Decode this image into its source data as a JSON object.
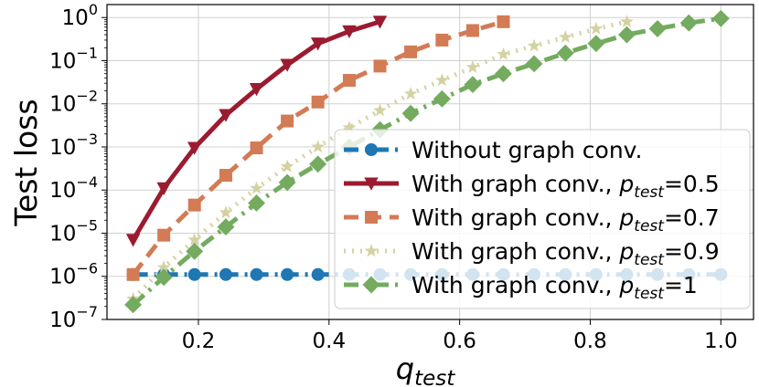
{
  "chart_data": {
    "type": "line",
    "title": "",
    "xlabel": "q",
    "xlabel_sub": "test",
    "ylabel": "Test loss",
    "xlim": [
      0.06,
      1.05
    ],
    "ylim": [
      1e-07,
      2
    ],
    "yscale": "log",
    "grid": true,
    "legend_position": "lower right",
    "x_ticks": [
      {
        "value": 0.2,
        "label": "0.2"
      },
      {
        "value": 0.4,
        "label": "0.4"
      },
      {
        "value": 0.6,
        "label": "0.6"
      },
      {
        "value": 0.8,
        "label": "0.8"
      },
      {
        "value": 1.0,
        "label": "1.0"
      }
    ],
    "y_ticks": [
      {
        "value": 1e-07,
        "base": "10",
        "exp": "−7"
      },
      {
        "value": 1e-06,
        "base": "10",
        "exp": "−6"
      },
      {
        "value": 1e-05,
        "base": "10",
        "exp": "−5"
      },
      {
        "value": 0.0001,
        "base": "10",
        "exp": "−4"
      },
      {
        "value": 0.001,
        "base": "10",
        "exp": "−3"
      },
      {
        "value": 0.01,
        "base": "10",
        "exp": "−2"
      },
      {
        "value": 0.1,
        "base": "10",
        "exp": "−1"
      },
      {
        "value": 1,
        "base": "10",
        "exp": "0"
      }
    ],
    "series": [
      {
        "name": "Without graph conv.",
        "legend_sub": "",
        "legend_suffix": "",
        "color": "#1f77b4",
        "dash": "16,7,3,7",
        "marker": "circle",
        "x": [
          0.1,
          0.147,
          0.194,
          0.242,
          0.289,
          0.336,
          0.383,
          0.431,
          0.478,
          0.525,
          0.573,
          0.62,
          0.667,
          0.714,
          0.762,
          0.809,
          0.856,
          0.903,
          0.951,
          1.0
        ],
        "y": [
          1.1e-06,
          1.1e-06,
          1.1e-06,
          1.1e-06,
          1.1e-06,
          1.1e-06,
          1.1e-06,
          1.1e-06,
          1.1e-06,
          1.1e-06,
          1.1e-06,
          1.1e-06,
          1.1e-06,
          1.1e-06,
          1.1e-06,
          1.1e-06,
          1.1e-06,
          1.1e-06,
          1.1e-06,
          1.1e-06
        ]
      },
      {
        "name": "With graph conv., p",
        "legend_sub": "test",
        "legend_suffix": "=0.5",
        "color": "#9b1b30",
        "dash": "",
        "marker": "triangle-down",
        "x": [
          0.1,
          0.147,
          0.194,
          0.242,
          0.289,
          0.336,
          0.383,
          0.431,
          0.478
        ],
        "y": [
          7e-06,
          0.00011,
          0.00095,
          0.0055,
          0.022,
          0.08,
          0.25,
          0.48,
          0.8
        ]
      },
      {
        "name": "With graph conv., p",
        "legend_sub": "test",
        "legend_suffix": "=0.7",
        "color": "#d27b55",
        "dash": "16,9",
        "marker": "square",
        "x": [
          0.1,
          0.147,
          0.194,
          0.242,
          0.289,
          0.336,
          0.383,
          0.431,
          0.478,
          0.525,
          0.573,
          0.62,
          0.667
        ],
        "y": [
          1.1e-06,
          9e-06,
          4.5e-05,
          0.00022,
          0.00095,
          0.004,
          0.011,
          0.035,
          0.075,
          0.16,
          0.3,
          0.5,
          0.8
        ]
      },
      {
        "name": "With graph conv., p",
        "legend_sub": "test",
        "legend_suffix": "=0.9",
        "color": "#d4d2a2",
        "dash": "2,7",
        "marker": "star",
        "x": [
          0.1,
          0.147,
          0.194,
          0.242,
          0.289,
          0.336,
          0.383,
          0.431,
          0.478,
          0.525,
          0.573,
          0.62,
          0.667,
          0.714,
          0.762,
          0.809,
          0.856
        ],
        "y": [
          3e-07,
          1.6e-06,
          7e-06,
          3e-05,
          0.00011,
          0.00035,
          0.001,
          0.0028,
          0.007,
          0.017,
          0.035,
          0.07,
          0.14,
          0.22,
          0.35,
          0.55,
          0.8
        ]
      },
      {
        "name": "With graph conv., p",
        "legend_sub": "test",
        "legend_suffix": "=1",
        "color": "#74ab5f",
        "dash": "16,7,3,7",
        "marker": "diamond",
        "x": [
          0.1,
          0.147,
          0.194,
          0.242,
          0.289,
          0.336,
          0.383,
          0.431,
          0.478,
          0.525,
          0.573,
          0.62,
          0.667,
          0.714,
          0.762,
          0.809,
          0.856,
          0.903,
          0.951,
          1.0
        ],
        "y": [
          2.2e-07,
          9.5e-07,
          3.8e-06,
          1.4e-05,
          5e-05,
          0.00015,
          0.0004,
          0.001,
          0.0025,
          0.006,
          0.013,
          0.028,
          0.05,
          0.085,
          0.15,
          0.25,
          0.4,
          0.55,
          0.75,
          0.95
        ]
      }
    ]
  }
}
